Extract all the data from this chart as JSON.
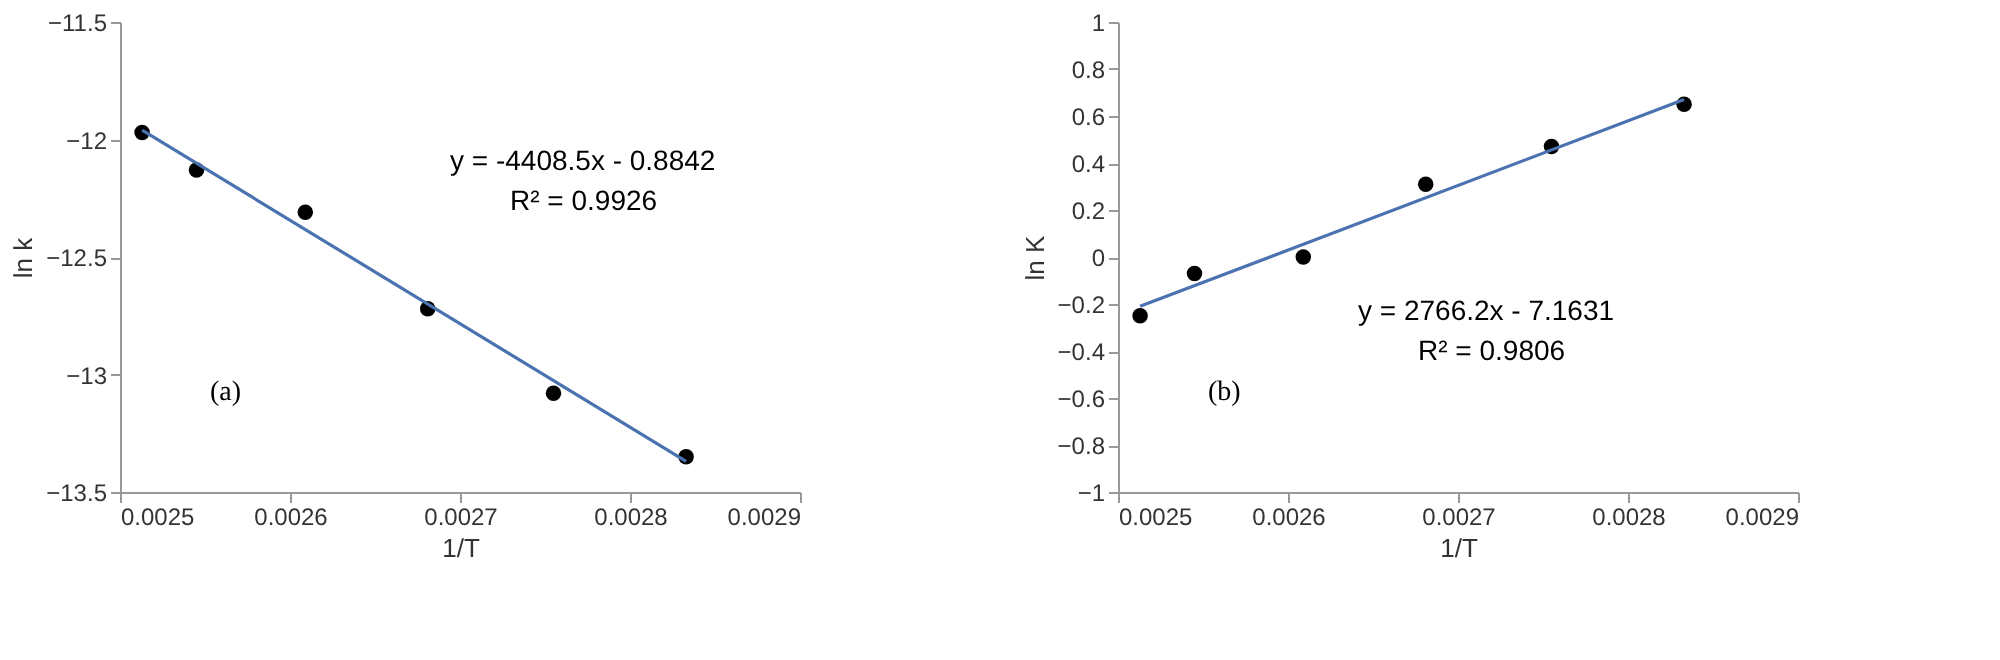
{
  "chart_data": [
    {
      "type": "scatter",
      "xlabel": "1/T",
      "ylabel": "ln k",
      "grid": false,
      "xlim": [
        0.0025,
        0.0029
      ],
      "xticks": [
        0.0025,
        0.0026,
        0.0027,
        0.0028,
        0.0029
      ],
      "ylim": [
        -13.5,
        -11.5
      ],
      "yticks": [
        -13.5,
        -13,
        -12.5,
        -12,
        -11.5
      ],
      "annotations": [
        "y = -4408.5x - 0.8842",
        "R² = 0.9926",
        "(a)"
      ],
      "series": [
        {
          "color": "#000000",
          "marker": "circle",
          "x": [
            0.002513,
            0.002545,
            0.002609,
            0.002681,
            0.002755,
            0.002833
          ],
          "values": [
            -11.97,
            -12.13,
            -12.31,
            -12.72,
            -13.08,
            -13.35
          ]
        },
        {
          "type": "line",
          "color": "#4a72b0",
          "marker": "none",
          "line_style": "solid",
          "x": [
            0.002513,
            0.002833
          ],
          "values": [
            -11.96,
            -13.37
          ]
        }
      ]
    },
    {
      "type": "scatter",
      "xlabel": "1/T",
      "ylabel": "ln K",
      "grid": false,
      "xlim": [
        0.0025,
        0.0029
      ],
      "xticks": [
        0.0025,
        0.0026,
        0.0027,
        0.0028,
        0.0029
      ],
      "ylim": [
        -1,
        1
      ],
      "yticks": [
        -1,
        -0.8,
        -0.6,
        -0.4,
        -0.2,
        0,
        0.2,
        0.4,
        0.6,
        0.8,
        1
      ],
      "annotations": [
        "y = 2766.2x - 7.1631",
        "R² = 0.9806",
        "(b)"
      ],
      "series": [
        {
          "color": "#000000",
          "marker": "circle",
          "x": [
            0.002513,
            0.002545,
            0.002609,
            0.002681,
            0.002755,
            0.002833
          ],
          "values": [
            -0.25,
            -0.07,
            0.0,
            0.31,
            0.47,
            0.65
          ]
        },
        {
          "type": "line",
          "color": "#4a72b0",
          "marker": "none",
          "line_style": "solid",
          "x": [
            0.002513,
            0.002833
          ],
          "values": [
            -0.21,
            0.67
          ]
        }
      ]
    }
  ]
}
